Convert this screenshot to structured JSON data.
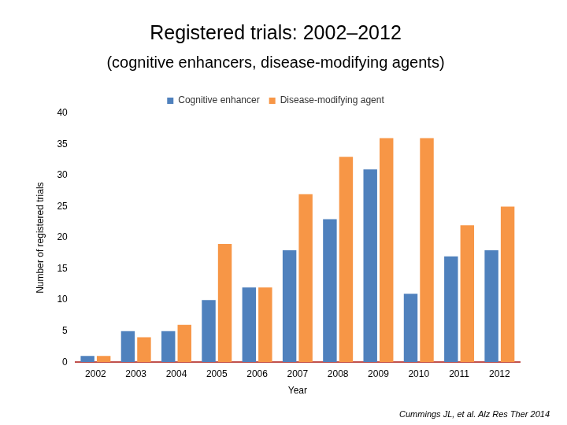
{
  "chart_data": {
    "type": "bar",
    "title": "Registered trials: 2002–2012",
    "subtitle": "(cognitive enhancers, disease-modifying agents)",
    "x_label": "Year",
    "y_label": "Number of registered trials",
    "annotations": [
      "Cummings JL, et al. Alz Res Ther 2014"
    ],
    "categories": [
      "2002",
      "2003",
      "2004",
      "2005",
      "2006",
      "2007",
      "2008",
      "2009",
      "2010",
      "2011",
      "2012"
    ],
    "series": [
      {
        "name": "Cognitive enhancer",
        "color": "#4f81bd",
        "values": [
          1,
          5,
          5,
          10,
          12,
          18,
          23,
          31,
          11,
          17,
          18
        ]
      },
      {
        "name": "Disease-modifying agent",
        "color": "#f79646",
        "values": [
          1,
          4,
          6,
          19,
          12,
          27,
          33,
          36,
          36,
          22,
          25
        ]
      }
    ],
    "ylim": [
      0,
      40
    ],
    "yticks": [
      0,
      5,
      10,
      15,
      20,
      25,
      30,
      35,
      40
    ],
    "grid": false,
    "legend": "top"
  }
}
